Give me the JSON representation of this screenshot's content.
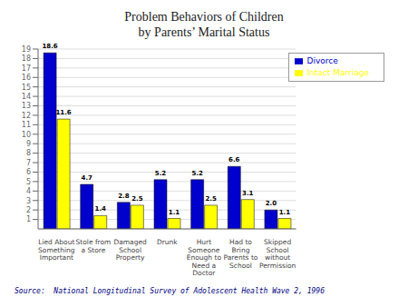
{
  "chart_data": {
    "type": "bar",
    "title": "Problem Behaviors of Children\nby Parents’ Marital Status",
    "categories": [
      "Lied About\nSomething\nImportant",
      "Stole from\na Store",
      "Damaged\nSchool\nProperty",
      "Drunk",
      "Hurt\nSomeone\nEnough to\nNeed a\nDoctor",
      "Had to\nBring\nParents to\nSchool",
      "Skipped\nSchool\nwithout\nPermission"
    ],
    "series": [
      {
        "name": "Divorce",
        "color": "#0000CC",
        "values": [
          18.6,
          4.7,
          2.8,
          5.2,
          5.2,
          6.6,
          2.0
        ],
        "value_labels": [
          "18.6",
          "4.7",
          "2.8",
          "5.2",
          "5.2",
          "6.6",
          "2.0"
        ]
      },
      {
        "name": "Intact Marriage",
        "color": "#FFFF00",
        "values": [
          11.6,
          1.4,
          2.5,
          1.1,
          2.5,
          3.1,
          1.1
        ],
        "value_labels": [
          "11.6",
          "1.4",
          "2.5",
          "1.1",
          "2.5",
          "3.1",
          "1.1"
        ]
      }
    ],
    "ylim": [
      0,
      19
    ],
    "yticks": [
      1,
      2,
      3,
      4,
      5,
      6,
      7,
      8,
      9,
      10,
      11,
      12,
      13,
      14,
      15,
      16,
      17,
      18,
      19
    ],
    "grid": true,
    "legend": "upper right",
    "data_labels": true,
    "annotations": [
      "Source:  National Longitudinal Survey of Adolescent Health Wave 2, 1996"
    ]
  }
}
